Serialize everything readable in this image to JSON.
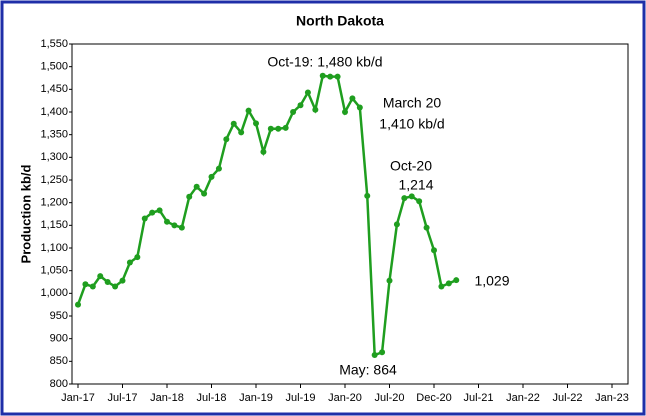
{
  "chart_data": {
    "type": "line",
    "title": "North Dakota",
    "y_label": "Production kb/d",
    "categories": [
      "Jan-17",
      null,
      null,
      null,
      null,
      null,
      "Jul-17",
      null,
      null,
      null,
      null,
      null,
      "Jan-18",
      null,
      null,
      null,
      null,
      null,
      "Jul-18",
      null,
      null,
      null,
      null,
      null,
      "Jan-19",
      null,
      null,
      null,
      null,
      null,
      "Jul-19",
      null,
      null,
      null,
      null,
      null,
      "Jan-20",
      null,
      null,
      null,
      null,
      null,
      "Jul-20",
      null,
      null,
      null,
      null,
      null,
      "Dec-20",
      null,
      null,
      null,
      null,
      null,
      "Jul-21",
      null,
      null,
      null,
      null,
      null,
      "Jan-22",
      null,
      null,
      null,
      null,
      null,
      "Jul-22",
      null,
      null,
      null,
      null,
      null,
      "Jan-23"
    ],
    "series": [
      {
        "name": "North Dakota",
        "color": "#1f9e1f",
        "values": [
          975,
          1020,
          1015,
          1038,
          1025,
          1015,
          1028,
          1068,
          1080,
          1165,
          1178,
          1183,
          1158,
          1150,
          1145,
          1213,
          1235,
          1220,
          1257,
          1275,
          1340,
          1374,
          1355,
          1403,
          1375,
          1312,
          1363,
          1363,
          1365,
          1400,
          1415,
          1443,
          1405,
          1480,
          1478,
          1478,
          1400,
          1430,
          1410,
          1215,
          864,
          870,
          1028,
          1152,
          1210,
          1214,
          1203,
          1145,
          1095,
          1015,
          1022,
          1029,
          null,
          null,
          null,
          null,
          null,
          null,
          null,
          null,
          null,
          null,
          null,
          null,
          null,
          null,
          null,
          null,
          null,
          null,
          null,
          null,
          null
        ]
      }
    ],
    "ylim": [
      800,
      1550
    ],
    "yticks": [
      800,
      850,
      900,
      950,
      {
        "value": 1000,
        "label": "1,000"
      },
      {
        "value": 1050,
        "label": "1,050"
      },
      {
        "value": 1100,
        "label": "1,100"
      },
      {
        "value": 1150,
        "label": "1,150"
      },
      {
        "value": 1200,
        "label": "1,200"
      },
      {
        "value": 1250,
        "label": "1,250"
      },
      {
        "value": 1300,
        "label": "1,300"
      },
      {
        "value": 1350,
        "label": "1,350"
      },
      {
        "value": 1400,
        "label": "1,400"
      },
      {
        "value": 1450,
        "label": "1,450"
      },
      {
        "value": 1500,
        "label": "1,500"
      },
      {
        "value": 1550,
        "label": "1,550"
      }
    ],
    "grid": false,
    "annotations": [
      "Oct-19: 1,480 kb/d",
      "March 20",
      "1,410 kb/d",
      "Oct-20",
      "1,214",
      "May: 864",
      "1,029"
    ]
  }
}
